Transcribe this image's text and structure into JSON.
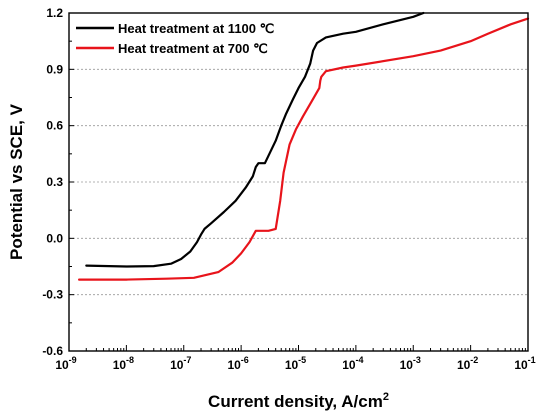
{
  "chart_data": {
    "type": "line",
    "xlabel": "Current density, A/cm",
    "xlabel_sup": "2",
    "ylabel": "Potential vs SCE, V",
    "xscale": "log",
    "xlim": [
      1e-09,
      0.1
    ],
    "ylim": [
      -0.6,
      1.2
    ],
    "x_ticks": [
      {
        "base": "10",
        "exp": "-9"
      },
      {
        "base": "10",
        "exp": "-8"
      },
      {
        "base": "10",
        "exp": "-7"
      },
      {
        "base": "10",
        "exp": "-6"
      },
      {
        "base": "10",
        "exp": "-5"
      },
      {
        "base": "10",
        "exp": "-4"
      },
      {
        "base": "10",
        "exp": "-3"
      },
      {
        "base": "10",
        "exp": "-2"
      },
      {
        "base": "10",
        "exp": "-1"
      }
    ],
    "y_ticks": [
      "-0.6",
      "-0.3",
      "0.0",
      "0.3",
      "0.6",
      "0.9",
      "1.2"
    ],
    "grid": "horizontal dotted",
    "legend_position": "top-left",
    "series": [
      {
        "name": "Heat treatment at 1100 ℃",
        "color": "#000000",
        "points": [
          [
            2e-09,
            -0.145
          ],
          [
            5e-09,
            -0.148
          ],
          [
            1e-08,
            -0.15
          ],
          [
            3e-08,
            -0.148
          ],
          [
            6e-08,
            -0.135
          ],
          [
            9e-08,
            -0.11
          ],
          [
            1.3e-07,
            -0.07
          ],
          [
            1.7e-07,
            -0.02
          ],
          [
            2e-07,
            0.02
          ],
          [
            2.3e-07,
            0.05
          ],
          [
            3e-07,
            0.08
          ],
          [
            5e-07,
            0.14
          ],
          [
            8e-07,
            0.2
          ],
          [
            1.2e-06,
            0.27
          ],
          [
            1.6e-06,
            0.33
          ],
          [
            1.8e-06,
            0.38
          ],
          [
            2e-06,
            0.4
          ],
          [
            2.6e-06,
            0.4
          ],
          [
            3e-06,
            0.44
          ],
          [
            4e-06,
            0.52
          ],
          [
            5e-06,
            0.6
          ],
          [
            6e-06,
            0.66
          ],
          [
            8e-06,
            0.74
          ],
          [
            1e-05,
            0.8
          ],
          [
            1.3e-05,
            0.86
          ],
          [
            1.6e-05,
            0.93
          ],
          [
            1.8e-05,
            1.0
          ],
          [
            2.1e-05,
            1.04
          ],
          [
            3e-05,
            1.07
          ],
          [
            6e-05,
            1.09
          ],
          [
            0.0001,
            1.1
          ],
          [
            0.0003,
            1.14
          ],
          [
            0.001,
            1.18
          ],
          [
            0.0015,
            1.2
          ]
        ]
      },
      {
        "name": "Heat treatment at 700 ℃",
        "color": "#e8141b",
        "points": [
          [
            1.5e-09,
            -0.22
          ],
          [
            4e-09,
            -0.22
          ],
          [
            1e-08,
            -0.22
          ],
          [
            5e-08,
            -0.215
          ],
          [
            1.5e-07,
            -0.21
          ],
          [
            4e-07,
            -0.18
          ],
          [
            7e-07,
            -0.13
          ],
          [
            1e-06,
            -0.08
          ],
          [
            1.4e-06,
            -0.02
          ],
          [
            1.8e-06,
            0.04
          ],
          [
            3e-06,
            0.04
          ],
          [
            4e-06,
            0.05
          ],
          [
            4.8e-06,
            0.2
          ],
          [
            5.5e-06,
            0.35
          ],
          [
            7e-06,
            0.5
          ],
          [
            9e-06,
            0.58
          ],
          [
            1.2e-05,
            0.65
          ],
          [
            1.7e-05,
            0.73
          ],
          [
            2.3e-05,
            0.8
          ],
          [
            2.4e-05,
            0.84
          ],
          [
            2.5e-05,
            0.86
          ],
          [
            3e-05,
            0.89
          ],
          [
            6e-05,
            0.91
          ],
          [
            0.0001,
            0.92
          ],
          [
            0.001,
            0.97
          ],
          [
            0.003,
            1.0
          ],
          [
            0.01,
            1.05
          ],
          [
            0.02,
            1.09
          ],
          [
            0.05,
            1.14
          ],
          [
            0.1,
            1.17
          ]
        ]
      }
    ]
  }
}
